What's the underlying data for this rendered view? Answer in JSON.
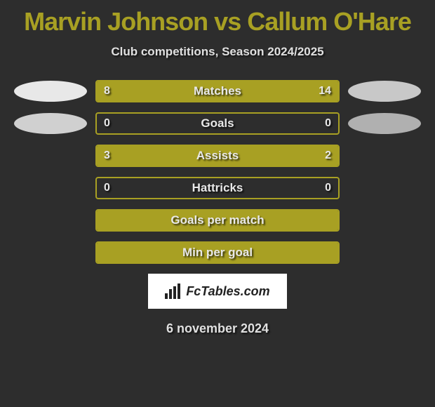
{
  "title": "Marvin Johnson vs Callum O'Hare",
  "subtitle": "Club competitions, Season 2024/2025",
  "date": "6 november 2024",
  "watermark": "FcTables.com",
  "colors": {
    "background": "#2d2d2d",
    "accent": "#a8a023",
    "ellipse_left_1": "#e8e8e8",
    "ellipse_left_2": "#d0d0d0",
    "ellipse_right_1": "#c8c8c8",
    "ellipse_right_2": "#b0b0b0",
    "text": "#e0e0e0",
    "border": "#a8a023"
  },
  "rows": [
    {
      "label": "Matches",
      "left_value": "8",
      "right_value": "14",
      "left_pct": 36,
      "right_pct": 64,
      "show_ellipses": true,
      "has_values": true,
      "left_ellipse_color": "#e8e8e8",
      "right_ellipse_color": "#c8c8c8"
    },
    {
      "label": "Goals",
      "left_value": "0",
      "right_value": "0",
      "left_pct": 0,
      "right_pct": 0,
      "show_ellipses": true,
      "has_values": true,
      "left_ellipse_color": "#d0d0d0",
      "right_ellipse_color": "#b0b0b0"
    },
    {
      "label": "Assists",
      "left_value": "3",
      "right_value": "2",
      "left_pct": 60,
      "right_pct": 40,
      "show_ellipses": false,
      "has_values": true
    },
    {
      "label": "Hattricks",
      "left_value": "0",
      "right_value": "0",
      "left_pct": 0,
      "right_pct": 0,
      "show_ellipses": false,
      "has_values": true
    },
    {
      "label": "Goals per match",
      "left_value": "",
      "right_value": "",
      "left_pct": 100,
      "right_pct": 0,
      "show_ellipses": false,
      "has_values": false,
      "full_fill": true
    },
    {
      "label": "Min per goal",
      "left_value": "",
      "right_value": "",
      "left_pct": 100,
      "right_pct": 0,
      "show_ellipses": false,
      "has_values": false,
      "full_fill": true
    }
  ]
}
